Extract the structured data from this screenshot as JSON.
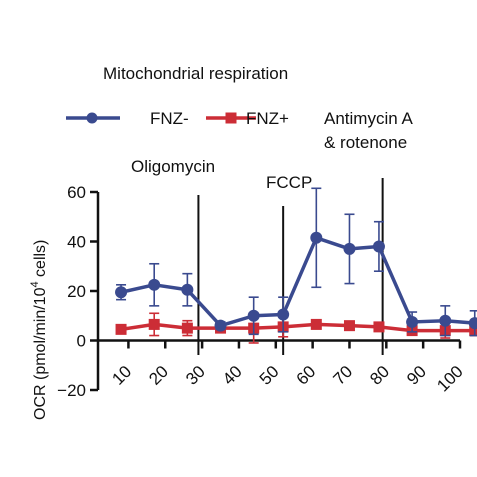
{
  "chart_data": {
    "type": "line",
    "title": "Mitochondrial respiration",
    "ylabel": "OCR (pmol/min/10^4 cells)",
    "ylabel_parts": {
      "before": "OCR (pmol/min/10",
      "sup": "4",
      "after": " cells)"
    },
    "xlim": [
      5,
      100
    ],
    "ylim": [
      -20,
      60
    ],
    "x_ticks": [
      "10",
      "20",
      "30",
      "40",
      "50",
      "60",
      "70",
      "80",
      "90",
      "100"
    ],
    "y_ticks": [
      "60",
      "40",
      "20",
      "0",
      "−20"
    ],
    "injections": [
      {
        "label": "Oligomycin",
        "x": 29
      },
      {
        "label": "FCCP",
        "x": 52
      },
      {
        "label": "Antimycin A\n& rotenone",
        "x": 79
      }
    ],
    "series": [
      {
        "name": "FNZ-",
        "color": "#3a4a8f",
        "marker": "circle",
        "x": [
          8,
          17,
          26,
          35,
          44,
          52,
          61,
          70,
          78,
          87,
          96,
          104
        ],
        "y": [
          19.5,
          22.5,
          20.5,
          6,
          10,
          10.5,
          41.5,
          37,
          38,
          7.5,
          8,
          7
        ],
        "err": [
          3,
          8.5,
          6.5,
          1.5,
          7.5,
          7,
          20,
          14,
          10,
          4,
          6,
          5
        ]
      },
      {
        "name": "FNZ+",
        "color": "#cc2d36",
        "marker": "square",
        "x": [
          8,
          17,
          26,
          35,
          44,
          52,
          61,
          70,
          78,
          87,
          96,
          104
        ],
        "y": [
          4.5,
          6.5,
          5,
          5,
          5,
          5.5,
          6.5,
          6,
          5.5,
          4,
          4,
          4
        ],
        "err": [
          1,
          4.5,
          3,
          1.5,
          6,
          4,
          1.5,
          1.5,
          1,
          1.5,
          3,
          2
        ]
      }
    ]
  }
}
